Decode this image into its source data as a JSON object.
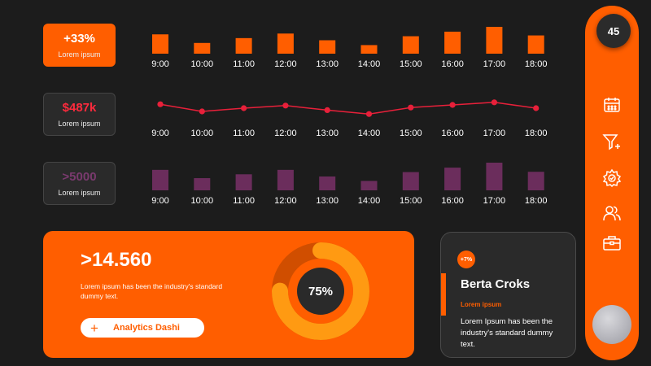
{
  "stats": [
    {
      "value": "+33%",
      "label": "Lorem ipsum"
    },
    {
      "value": "$487k",
      "label": "Lorem ipsum"
    },
    {
      "value": ">5000",
      "label": "Lorem ipsum"
    }
  ],
  "colors": {
    "accent": "#ff5e00",
    "background": "#1c1c1c",
    "card_dark": "#2a2a2a",
    "line_red": "#e8203a",
    "bar_purple": "#6b2d5c",
    "donut_light": "#ff9a12",
    "donut_track": "#d04e00"
  },
  "chart_data": [
    {
      "type": "bar",
      "categories": [
        "9:00",
        "10:00",
        "11:00",
        "12:00",
        "13:00",
        "14:00",
        "15:00",
        "16:00",
        "17:00",
        "18:00"
      ],
      "values": [
        72,
        40,
        58,
        75,
        50,
        32,
        65,
        82,
        100,
        68
      ],
      "color": "#ff5e00"
    },
    {
      "type": "line",
      "categories": [
        "9:00",
        "10:00",
        "11:00",
        "12:00",
        "13:00",
        "14:00",
        "15:00",
        "16:00",
        "17:00",
        "18:00"
      ],
      "values": [
        62,
        40,
        50,
        58,
        44,
        32,
        52,
        60,
        68,
        50
      ],
      "color": "#e8203a"
    },
    {
      "type": "bar",
      "categories": [
        "9:00",
        "10:00",
        "11:00",
        "12:00",
        "13:00",
        "14:00",
        "15:00",
        "16:00",
        "17:00",
        "18:00"
      ],
      "values": [
        74,
        44,
        58,
        74,
        50,
        34,
        66,
        82,
        100,
        67
      ],
      "color": "#6b2d5c"
    },
    {
      "type": "pie",
      "values": [
        75
      ],
      "label": "75%"
    }
  ],
  "main": {
    "big_number": ">14.560",
    "description": "Lorem ipsum has been the industry's standard dummy text.",
    "button_label": "Analytics Dashi",
    "button_icon": "plus-icon"
  },
  "profile": {
    "badge": "+7%",
    "name": "Berta Croks",
    "role": "Lorem ipsum",
    "description": "Lorem Ipsum has been the industry's standard dummy text."
  },
  "sidebar": {
    "count": "45",
    "icons": [
      "calendar-icon",
      "filter-add-icon",
      "settings-gear-icon",
      "users-icon",
      "briefcase-icon"
    ],
    "avatar": "avatar"
  }
}
